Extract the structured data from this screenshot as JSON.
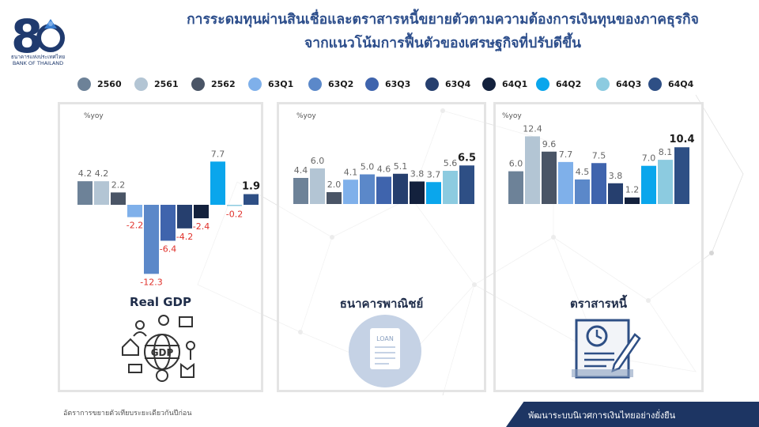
{
  "title_line1": "การระดมทุนผ่านสินเชื่อและตราสารหนี้ขยายตัวตามความต้องการเงินทุนของภาคธุรกิจ",
  "title_line2": "จากแนวโน้มการฟื้นตัวของเศรษฐกิจที่ปรับดีขึ้น",
  "logo_text": "ธนาคารแห่งประเทศไทย BANK OF THAILAND",
  "legend": [
    {
      "label": "2560",
      "color": "#6d8298"
    },
    {
      "label": "2561",
      "color": "#b3c5d4"
    },
    {
      "label": "2562",
      "color": "#4a5566"
    },
    {
      "label": "63Q1",
      "color": "#7fb0ea"
    },
    {
      "label": "63Q2",
      "color": "#5b88c9"
    },
    {
      "label": "63Q3",
      "color": "#3f64ad"
    },
    {
      "label": "63Q4",
      "color": "#263f6e"
    },
    {
      "label": "64Q1",
      "color": "#13213d"
    },
    {
      "label": "64Q2",
      "color": "#0aa6ec"
    },
    {
      "label": "64Q3",
      "color": "#8ccbe0"
    },
    {
      "label": "64Q4",
      "color": "#2e4f85"
    }
  ],
  "chart_data": [
    {
      "type": "bar",
      "title": "Real GDP",
      "ylabel": "%yoy",
      "categories": [
        "2560",
        "2561",
        "2562",
        "63Q1",
        "63Q2",
        "63Q3",
        "63Q4",
        "64Q1",
        "64Q2",
        "64Q3",
        "64Q4"
      ],
      "values": [
        4.2,
        4.2,
        2.2,
        -2.2,
        -12.3,
        -6.4,
        -4.2,
        -2.4,
        7.7,
        -0.2,
        1.9
      ],
      "labels": [
        "4.2",
        "4.2",
        "2.2",
        "-2.2",
        "-12.3",
        "-6.4",
        "-4.2",
        "-2.4",
        "7.7",
        "-0.2",
        "1.9"
      ]
    },
    {
      "type": "bar",
      "title": "ธนาคารพาณิชย์",
      "ylabel": "%yoy",
      "categories": [
        "2560",
        "2561",
        "2562",
        "63Q1",
        "63Q2",
        "63Q3",
        "63Q4",
        "64Q1",
        "64Q2",
        "64Q3",
        "64Q4"
      ],
      "values": [
        4.4,
        6.0,
        2.0,
        4.1,
        5.0,
        4.6,
        5.1,
        3.8,
        3.7,
        5.6,
        6.5
      ],
      "labels": [
        "4.4",
        "6.0",
        "2.0",
        "4.1",
        "5.0",
        "4.6",
        "5.1",
        "3.8",
        "3.7",
        "5.6",
        "6.5"
      ]
    },
    {
      "type": "bar",
      "title": "ตราสารหนี้",
      "ylabel": "%yoy",
      "categories": [
        "2560",
        "2561",
        "2562",
        "63Q1",
        "63Q2",
        "63Q3",
        "63Q4",
        "64Q1",
        "64Q2",
        "64Q3",
        "64Q4"
      ],
      "values": [
        6.0,
        12.4,
        9.6,
        7.7,
        4.5,
        7.5,
        3.8,
        1.2,
        7.0,
        8.1,
        10.4
      ],
      "labels": [
        "6.0",
        "12.4",
        "9.6",
        "7.7",
        "4.5",
        "7.5",
        "3.8",
        "1.2",
        "7.0",
        "8.1",
        "10.4"
      ]
    }
  ],
  "icons": {
    "gdp": "gdp-globe-icon",
    "loan": "loan-document-icon",
    "bond": "bond-certificate-icon"
  },
  "loan_icon_text": "LOAN",
  "gdp_icon_text": "GDP",
  "footnote": "อัตราการขยายตัวเทียบระยะเดียวกันปีก่อน",
  "footer": "พัฒนาระบบนิเวศการเงินไทยอย่างยั่งยืน"
}
